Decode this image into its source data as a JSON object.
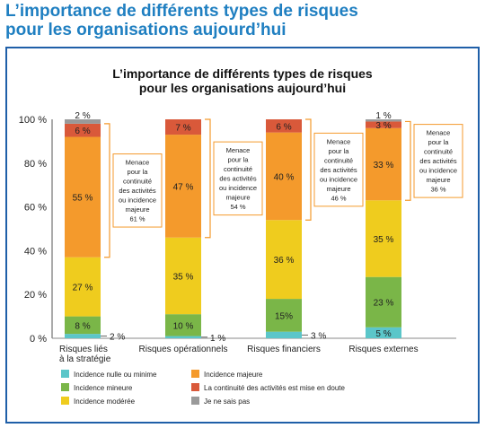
{
  "page": {
    "title_line1": "L’importance de différents types de risques",
    "title_line2": "pour les organisations aujourd’hui"
  },
  "colors": {
    "nulle": "#5bc6c9",
    "mineure": "#7ab648",
    "moderee": "#efcc1e",
    "majeure": "#f49a2c",
    "doute": "#d9593a",
    "nsp": "#9a9a9a",
    "title": "#1f7fc1",
    "frame": "#1f5fa8",
    "bracket": "#f49a2c"
  },
  "chart_data": {
    "type": "bar",
    "stacked": true,
    "title_line1": "L’importance de différents types de risques",
    "title_line2": "pour les organisations aujourd’hui",
    "xlabel": "",
    "ylabel": "",
    "ylim": [
      0,
      100
    ],
    "yticks": [
      "0 %",
      "20 %",
      "40 %",
      "60 %",
      "80 %",
      "100 %"
    ],
    "categories": [
      [
        "Risques liés",
        "à la stratégie"
      ],
      [
        "Risques opérationnels"
      ],
      [
        "Risques financiers"
      ],
      [
        "Risques externes"
      ]
    ],
    "series": [
      {
        "name": "Incidence nulle ou minime",
        "color_key": "nulle",
        "values": [
          2,
          1,
          3,
          5
        ],
        "labels": [
          "2 %",
          "1 %",
          "3 %",
          "5 %"
        ]
      },
      {
        "name": "Incidence mineure",
        "color_key": "mineure",
        "values": [
          8,
          10,
          15,
          23
        ],
        "labels": [
          "8 %",
          "10 %",
          "15%",
          "23 %"
        ]
      },
      {
        "name": "Incidence modérée",
        "color_key": "moderee",
        "values": [
          27,
          35,
          36,
          35
        ],
        "labels": [
          "27 %",
          "35 %",
          "36 %",
          "35 %"
        ]
      },
      {
        "name": "Incidence majeure",
        "color_key": "majeure",
        "values": [
          55,
          47,
          40,
          33
        ],
        "labels": [
          "55 %",
          "47 %",
          "40 %",
          "33 %"
        ]
      },
      {
        "name": "La continuité des activités est mise en doute",
        "color_key": "doute",
        "values": [
          6,
          7,
          6,
          3
        ],
        "labels": [
          "6 %",
          "7 %",
          "6 %",
          "3 %"
        ]
      },
      {
        "name": "Je ne sais pas",
        "color_key": "nsp",
        "values": [
          2,
          0,
          0,
          1
        ],
        "labels": [
          "2 %",
          "",
          "",
          "1 %"
        ]
      }
    ],
    "annotations": [
      {
        "lines": [
          "Menace",
          "pour la",
          "continuité",
          "des activités",
          "ou incidence",
          "majeure"
        ],
        "value": "61 %"
      },
      {
        "lines": [
          "Menace",
          "pour la",
          "continuité",
          "des activités",
          "ou incidence",
          "majeure"
        ],
        "value": "54 %"
      },
      {
        "lines": [
          "Menace",
          "pour la",
          "continuité",
          "des activités",
          "ou incidence",
          "majeure"
        ],
        "value": "46 %"
      },
      {
        "lines": [
          "Menace",
          "pour la",
          "continuité",
          "des activités",
          "ou incidence",
          "majeure"
        ],
        "value": "36 %"
      }
    ],
    "legend_position": "bottom",
    "grid": false
  }
}
